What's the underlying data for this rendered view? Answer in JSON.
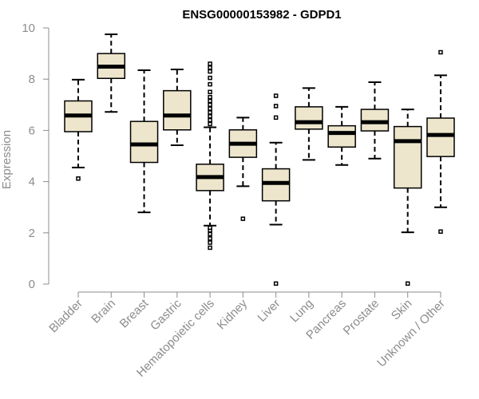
{
  "chart_data": {
    "type": "boxplot",
    "title": "ENSG00000153982 - GDPD1",
    "ylabel": "Expression",
    "xlabel": "",
    "ylim": [
      0,
      10
    ],
    "yticks": [
      0,
      2,
      4,
      6,
      8,
      10
    ],
    "grid": false,
    "legend": "none",
    "box_fill": "#ede6cc",
    "line_color": "#000000",
    "axis_color": "#8c8c8c",
    "categories": [
      "Bladder",
      "Brain",
      "Breast",
      "Gastric",
      "Hematopoietic cells",
      "Kidney",
      "Liver",
      "Lung",
      "Pancreas",
      "Prostate",
      "Skin",
      "Unknown / Other"
    ],
    "boxes": [
      {
        "min": 4.55,
        "q1": 5.95,
        "median": 6.58,
        "q3": 7.15,
        "max": 7.98,
        "outliers": [
          4.12
        ]
      },
      {
        "min": 6.72,
        "q1": 8.03,
        "median": 8.49,
        "q3": 9.0,
        "max": 9.75,
        "outliers": []
      },
      {
        "min": 2.8,
        "q1": 4.75,
        "median": 5.45,
        "q3": 6.35,
        "max": 8.35,
        "outliers": []
      },
      {
        "min": 5.42,
        "q1": 6.02,
        "median": 6.58,
        "q3": 7.55,
        "max": 8.38,
        "outliers": []
      },
      {
        "min": 2.28,
        "q1": 3.65,
        "median": 4.18,
        "q3": 4.68,
        "max": 6.12,
        "outliers": [
          1.42,
          1.62,
          1.78,
          1.95,
          2.1,
          2.2,
          6.25,
          6.4,
          6.55,
          6.7,
          6.85,
          7.0,
          7.15,
          7.3,
          7.5,
          7.8,
          8.05,
          8.3,
          8.45,
          8.6
        ]
      },
      {
        "min": 3.82,
        "q1": 4.95,
        "median": 5.48,
        "q3": 6.02,
        "max": 6.5,
        "outliers": [
          2.55
        ]
      },
      {
        "min": 2.32,
        "q1": 3.25,
        "median": 3.95,
        "q3": 4.5,
        "max": 5.52,
        "outliers": [
          0.02,
          6.5,
          6.95,
          7.35
        ]
      },
      {
        "min": 4.85,
        "q1": 6.05,
        "median": 6.32,
        "q3": 6.92,
        "max": 7.65,
        "outliers": []
      },
      {
        "min": 4.65,
        "q1": 5.35,
        "median": 5.9,
        "q3": 6.18,
        "max": 6.92,
        "outliers": []
      },
      {
        "min": 4.9,
        "q1": 5.98,
        "median": 6.32,
        "q3": 6.82,
        "max": 7.88,
        "outliers": []
      },
      {
        "min": 2.02,
        "q1": 3.75,
        "median": 5.58,
        "q3": 6.15,
        "max": 6.82,
        "outliers": [
          0.02
        ]
      },
      {
        "min": 3.0,
        "q1": 4.98,
        "median": 5.82,
        "q3": 6.48,
        "max": 8.15,
        "outliers": [
          2.05,
          9.05
        ]
      }
    ]
  }
}
